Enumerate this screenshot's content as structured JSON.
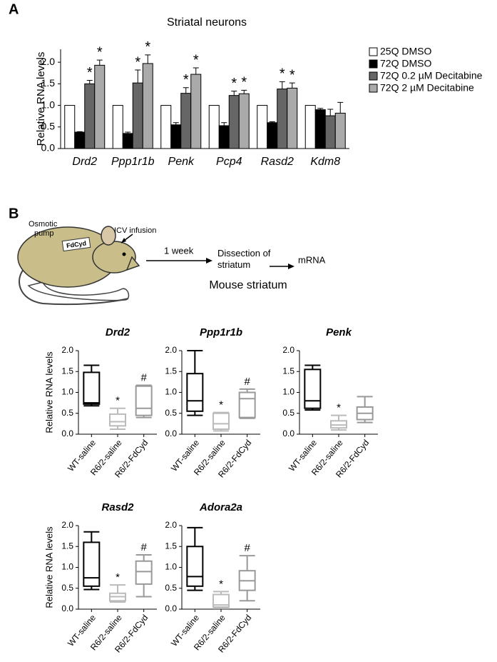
{
  "panel_labels": [
    "A",
    "B"
  ],
  "diagram": {
    "pump": "Osmotic pump",
    "drug": "FdCyd",
    "route": "ICV infusion",
    "duration": "1 week",
    "step": "Dissection of striatum",
    "readout": "mRNA",
    "title": "Mouse striatum"
  },
  "chart_data": [
    {
      "type": "bar",
      "title": "Striatal neurons",
      "ylabel": "Relative RNA levels",
      "categories": [
        "Drd2",
        "Ppp1r1b",
        "Penk",
        "Pcp4",
        "Rasd2",
        "Kdm8"
      ],
      "series": [
        {
          "name": "25Q DMSO",
          "color": "#ffffff",
          "values": [
            1,
            1,
            1,
            1,
            1,
            1
          ]
        },
        {
          "name": "72Q DMSO",
          "color": "#000000",
          "values": [
            0.38,
            0.35,
            0.55,
            0.53,
            0.6,
            0.9
          ],
          "errors": [
            0.01,
            0.03,
            0.05,
            0.07,
            0.02,
            0.03
          ]
        },
        {
          "name": "72Q 0.2 µM Decitabine",
          "color": "#666666",
          "values": [
            1.5,
            1.52,
            1.28,
            1.23,
            1.38,
            0.76
          ],
          "errors": [
            0.08,
            0.3,
            0.13,
            0.1,
            0.17,
            0.15
          ],
          "significance": [
            "*",
            "*",
            "*",
            "*",
            "*",
            null
          ]
        },
        {
          "name": "72Q 2 µM Decitabine",
          "color": "#aaaaaa",
          "values": [
            1.93,
            1.97,
            1.72,
            1.27,
            1.4,
            0.82
          ],
          "errors": [
            0.12,
            0.2,
            0.15,
            0.08,
            0.12,
            0.25
          ],
          "significance": [
            "*",
            "*",
            "*",
            "*",
            "*",
            null
          ]
        }
      ],
      "ylim": [
        0,
        2.3
      ],
      "yticks": [
        {
          "value": 0,
          "label": "0.0"
        },
        0.5,
        {
          "value": 1,
          "label": "1.0"
        },
        1.5,
        {
          "value": 2,
          "label": "2.0"
        }
      ]
    },
    {
      "type": "box",
      "title": "Drd2",
      "ylabel": "Relative RNA levels",
      "categories": [
        "WT-saline",
        "R6/2-saline",
        "R6/2-FdCyd"
      ],
      "colors": [
        "#000000",
        "#bbbbbb",
        "#999999"
      ],
      "stats": [
        [
          0.68,
          0.72,
          0.75,
          1.48,
          1.65
        ],
        [
          0.12,
          0.2,
          0.3,
          0.48,
          0.62
        ],
        [
          0.4,
          0.45,
          0.62,
          1.15,
          1.17
        ]
      ],
      "annotations": [
        null,
        "*",
        "#"
      ],
      "ylim": [
        0,
        2
      ],
      "yticks": [
        {
          "value": 0,
          "label": "0.0"
        },
        0.5,
        {
          "value": 1,
          "label": "1.0"
        },
        1.5,
        {
          "value": 2,
          "label": "2.0"
        }
      ]
    },
    {
      "type": "box",
      "title": "Ppp1r1b",
      "categories": [
        "WT-saline",
        "R6/2-saline",
        "R6/2-FdCyd"
      ],
      "colors": [
        "#000000",
        "#bbbbbb",
        "#999999"
      ],
      "stats": [
        [
          0.45,
          0.55,
          0.8,
          1.45,
          2.0
        ],
        [
          0.08,
          0.12,
          0.25,
          0.5,
          0.52
        ],
        [
          0.38,
          0.4,
          0.85,
          1.0,
          1.08
        ]
      ],
      "annotations": [
        null,
        "*",
        "#"
      ],
      "ylim": [
        0,
        2
      ],
      "yticks": [
        {
          "value": 0,
          "label": "0.0"
        },
        0.5,
        {
          "value": 1,
          "label": "1.0"
        },
        1.5,
        {
          "value": 2,
          "label": "2.0"
        }
      ]
    },
    {
      "type": "box",
      "title": "Penk",
      "categories": [
        "WT-saline",
        "R6/2-saline",
        "R6/2-FdCyd"
      ],
      "colors": [
        "#000000",
        "#bbbbbb",
        "#999999"
      ],
      "stats": [
        [
          0.58,
          0.62,
          0.8,
          1.55,
          1.65
        ],
        [
          0.1,
          0.15,
          0.22,
          0.32,
          0.45
        ],
        [
          0.28,
          0.35,
          0.5,
          0.65,
          0.9
        ]
      ],
      "annotations": [
        null,
        "*",
        null
      ],
      "ylim": [
        0,
        2
      ],
      "yticks": [
        {
          "value": 0,
          "label": "0.0"
        },
        0.5,
        {
          "value": 1,
          "label": "1.0"
        },
        1.5,
        {
          "value": 2,
          "label": "2.0"
        }
      ]
    },
    {
      "type": "box",
      "title": "Rasd2",
      "ylabel": "Relative RNA levels",
      "categories": [
        "WT-saline",
        "R6/2-saline",
        "R6/2-FdCyd"
      ],
      "colors": [
        "#000000",
        "#bbbbbb",
        "#999999"
      ],
      "stats": [
        [
          0.47,
          0.55,
          0.75,
          1.6,
          1.85
        ],
        [
          0.17,
          0.2,
          0.3,
          0.38,
          0.58
        ],
        [
          0.3,
          0.6,
          0.9,
          1.15,
          1.3
        ]
      ],
      "annotations": [
        null,
        "*",
        "#"
      ],
      "ylim": [
        0,
        2
      ],
      "yticks": [
        {
          "value": 0,
          "label": "0.0"
        },
        0.5,
        {
          "value": 1,
          "label": "1.0"
        },
        1.5,
        {
          "value": 2,
          "label": "2.0"
        }
      ]
    },
    {
      "type": "box",
      "title": "Adora2a",
      "categories": [
        "WT-saline",
        "R6/2-saline",
        "R6/2-FdCyd"
      ],
      "colors": [
        "#000000",
        "#bbbbbb",
        "#999999"
      ],
      "stats": [
        [
          0.45,
          0.55,
          0.78,
          1.5,
          1.95
        ],
        [
          0.02,
          0.05,
          0.1,
          0.35,
          0.42
        ],
        [
          0.2,
          0.45,
          0.68,
          0.92,
          1.28
        ]
      ],
      "annotations": [
        null,
        "*",
        "#"
      ],
      "ylim": [
        0,
        2
      ],
      "yticks": [
        {
          "value": 0,
          "label": "0.0"
        },
        0.5,
        {
          "value": 1,
          "label": "1.0"
        },
        1.5,
        {
          "value": 2,
          "label": "2.0"
        }
      ]
    }
  ]
}
